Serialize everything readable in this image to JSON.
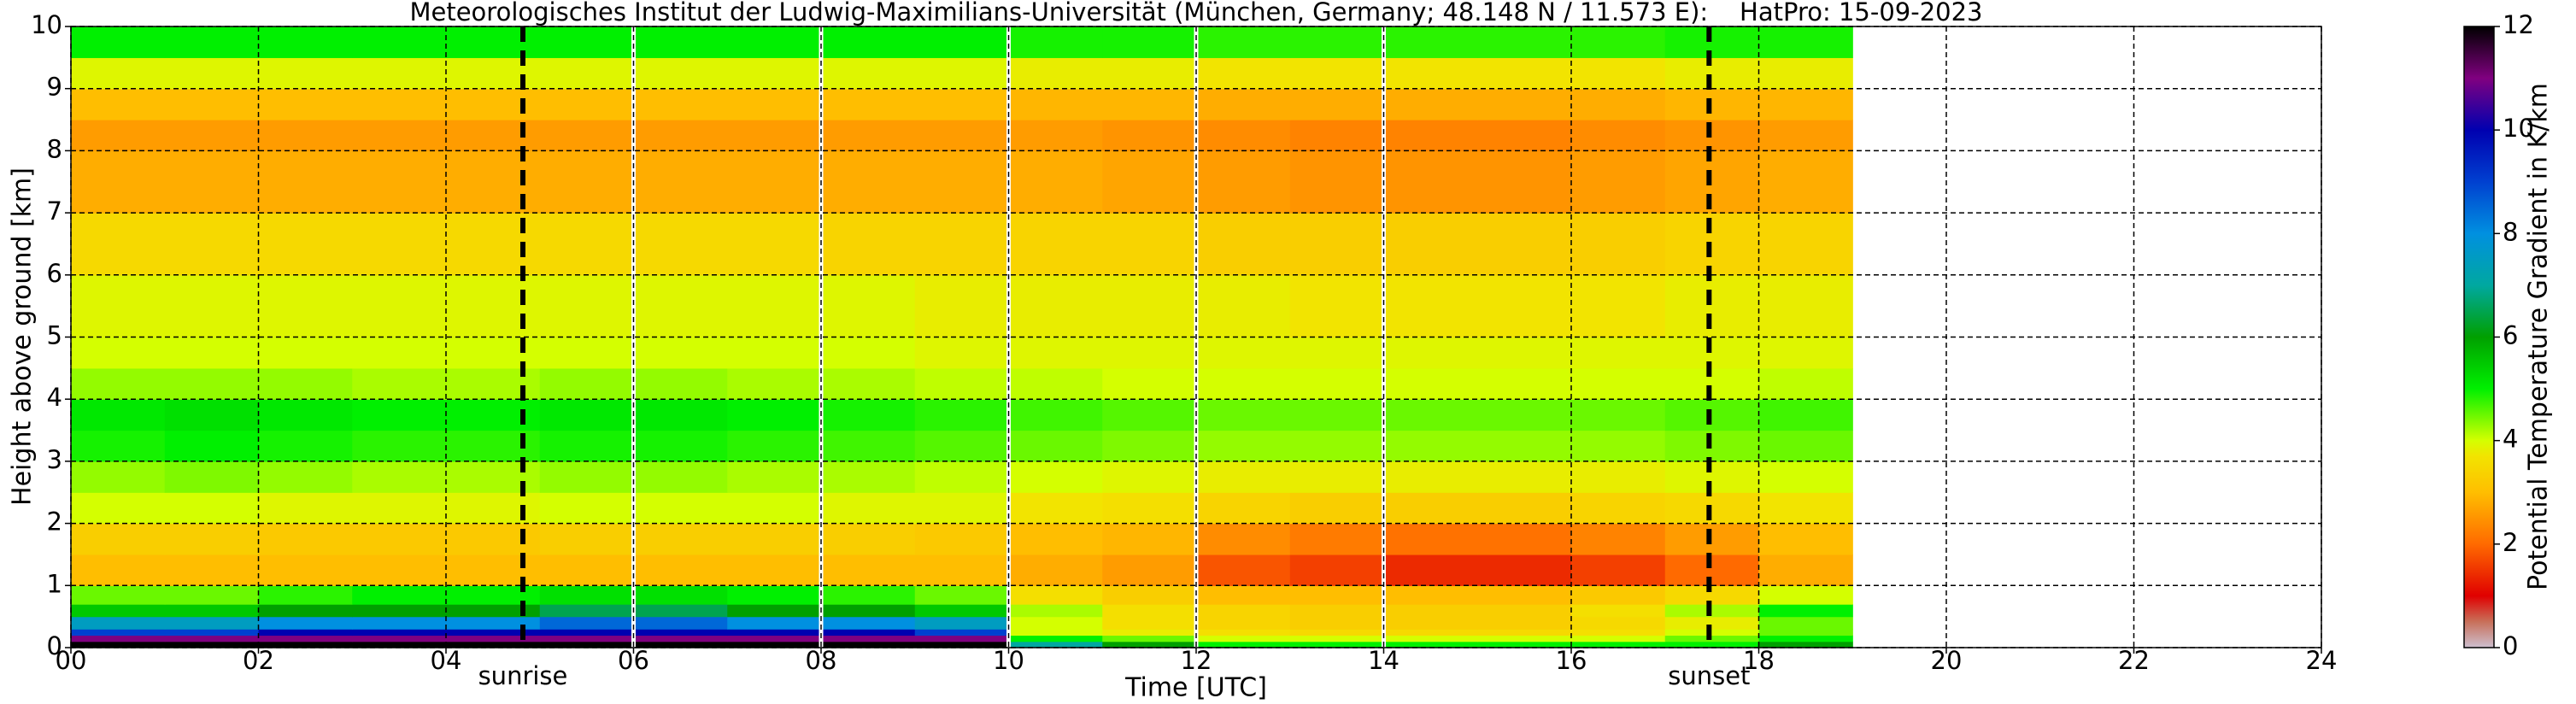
{
  "chart_data": {
    "type": "heatmap",
    "title": "Meteorologisches Institut der Ludwig-Maximilians-Universität (München, Germany; 48.148 N / 11.573 E):    HatPro: 15-09-2023",
    "xlabel": "Time [UTC]",
    "ylabel": "Height above ground [km]",
    "colorbar_label": "Potential Temperature Gradient in K/km",
    "xlim": [
      0,
      24
    ],
    "xticks": [
      {
        "value": 0,
        "label": "00"
      },
      {
        "value": 2,
        "label": "02"
      },
      {
        "value": 4,
        "label": "04"
      },
      {
        "value": 6,
        "label": "06"
      },
      {
        "value": 8,
        "label": "08"
      },
      {
        "value": 10,
        "label": "10"
      },
      {
        "value": 12,
        "label": "12"
      },
      {
        "value": 14,
        "label": "14"
      },
      {
        "value": 16,
        "label": "16"
      },
      {
        "value": 18,
        "label": "18"
      },
      {
        "value": 20,
        "label": "20"
      },
      {
        "value": 22,
        "label": "22"
      },
      {
        "value": 24,
        "label": "24"
      }
    ],
    "ylim": [
      0,
      10
    ],
    "yticks": [
      0,
      1,
      2,
      3,
      4,
      5,
      6,
      7,
      8,
      9,
      10
    ],
    "zlim": [
      0,
      12
    ],
    "zticks": [
      0,
      2,
      4,
      6,
      8,
      10,
      12
    ],
    "grid": true,
    "colormap": [
      [
        0,
        "#cdbfcf"
      ],
      [
        0.5,
        "#c8705a"
      ],
      [
        1,
        "#e00000"
      ],
      [
        2,
        "#ff6a00"
      ],
      [
        3,
        "#ffbe00"
      ],
      [
        3.7,
        "#f2e400"
      ],
      [
        4,
        "#d4ff00"
      ],
      [
        5,
        "#00f000"
      ],
      [
        6,
        "#00a000"
      ],
      [
        7,
        "#00a8a0"
      ],
      [
        8,
        "#0090e0"
      ],
      [
        9,
        "#0040d0"
      ],
      [
        10,
        "#0000b0"
      ],
      [
        11,
        "#800080"
      ],
      [
        12,
        "#000000"
      ]
    ],
    "data_gaps": [
      6,
      8,
      10,
      12,
      14
    ],
    "annotations": [
      {
        "text": "sunrise",
        "x": 4.82
      },
      {
        "text": "sunset",
        "x": 17.47
      }
    ],
    "x_edges": [
      0,
      1,
      2,
      3,
      4,
      5,
      6,
      7,
      8,
      9,
      10,
      11,
      12,
      13,
      14,
      15,
      16,
      17,
      18,
      19
    ],
    "y_edges": [
      0,
      0.1,
      0.2,
      0.3,
      0.5,
      0.7,
      1,
      1.5,
      2,
      2.5,
      3,
      3.5,
      4,
      4.5,
      5,
      6,
      7,
      8,
      8.5,
      9,
      9.5,
      10
    ],
    "z": [
      [
        12,
        12,
        12,
        12,
        12,
        12,
        12,
        12,
        12,
        12,
        7,
        6,
        5,
        5,
        5,
        5,
        5,
        5,
        6
      ],
      [
        11,
        11,
        11,
        11,
        11,
        11,
        11,
        11,
        11,
        11,
        5,
        4.5,
        4,
        4,
        4,
        4,
        4,
        4.5,
        5
      ],
      [
        9,
        9,
        10,
        10,
        10,
        10,
        10,
        10,
        10,
        9,
        4,
        3.8,
        3.6,
        3.5,
        3.5,
        3.5,
        3.6,
        4,
        4.5
      ],
      [
        7.5,
        7.5,
        8,
        8,
        8,
        8.5,
        8.5,
        8,
        8,
        7.5,
        4,
        3.6,
        3.4,
        3.3,
        3.3,
        3.3,
        3.5,
        3.8,
        4.5
      ],
      [
        5.5,
        5.5,
        6,
        6,
        6,
        6.5,
        6.5,
        6,
        6,
        5.5,
        4.2,
        3.6,
        3.4,
        3.3,
        3.3,
        3.3,
        3.6,
        4.2,
        5
      ],
      [
        4.5,
        4.5,
        4.8,
        5,
        5,
        5.2,
        5.2,
        5,
        4.8,
        4.5,
        3.6,
        3.3,
        3,
        3,
        3,
        3,
        3.2,
        3.5,
        4
      ],
      [
        3,
        3,
        3,
        3,
        3,
        3,
        3,
        3,
        3,
        3,
        2.8,
        2.6,
        1.8,
        1.6,
        1.4,
        1.4,
        1.6,
        2,
        2.8
      ],
      [
        3.3,
        3.3,
        3.2,
        3.2,
        3.2,
        3.3,
        3.3,
        3.3,
        3.3,
        3.2,
        3,
        2.9,
        2.4,
        2.2,
        2.1,
        2.1,
        2.3,
        2.6,
        3
      ],
      [
        4,
        4,
        3.9,
        3.9,
        3.9,
        4,
        4,
        4,
        3.9,
        3.9,
        3.7,
        3.6,
        3.4,
        3.3,
        3.3,
        3.3,
        3.4,
        3.5,
        3.7
      ],
      [
        4.3,
        4.4,
        4.3,
        4.2,
        4.2,
        4.3,
        4.3,
        4.2,
        4.2,
        4.1,
        4,
        3.9,
        3.8,
        3.8,
        3.8,
        3.8,
        3.8,
        3.9,
        4
      ],
      [
        4.9,
        5,
        4.9,
        4.8,
        4.8,
        4.9,
        4.9,
        4.8,
        4.7,
        4.6,
        4.5,
        4.4,
        4.3,
        4.3,
        4.3,
        4.3,
        4.3,
        4.4,
        4.5
      ],
      [
        5.1,
        5.2,
        5.1,
        5,
        5,
        5.1,
        5.1,
        5,
        4.9,
        4.8,
        4.7,
        4.6,
        4.5,
        4.5,
        4.5,
        4.5,
        4.5,
        4.6,
        4.7
      ],
      [
        4.3,
        4.3,
        4.3,
        4.2,
        4.2,
        4.3,
        4.3,
        4.2,
        4.2,
        4.1,
        4.1,
        4,
        4,
        4,
        4,
        4,
        4,
        4,
        4.1
      ],
      [
        4,
        4,
        4,
        4,
        4,
        4,
        4,
        4,
        4,
        3.9,
        3.9,
        3.9,
        3.9,
        3.9,
        3.9,
        3.9,
        3.9,
        3.9,
        3.9
      ],
      [
        3.9,
        3.9,
        3.9,
        3.9,
        3.9,
        3.9,
        3.9,
        3.9,
        3.9,
        3.8,
        3.8,
        3.8,
        3.8,
        3.7,
        3.7,
        3.7,
        3.7,
        3.8,
        3.8
      ],
      [
        3.5,
        3.5,
        3.5,
        3.5,
        3.5,
        3.5,
        3.5,
        3.5,
        3.4,
        3.4,
        3.4,
        3.4,
        3.3,
        3.3,
        3.3,
        3.3,
        3.3,
        3.4,
        3.4
      ],
      [
        2.8,
        2.8,
        2.8,
        2.8,
        2.8,
        2.8,
        2.8,
        2.8,
        2.8,
        2.8,
        2.8,
        2.7,
        2.6,
        2.5,
        2.5,
        2.5,
        2.6,
        2.7,
        2.8
      ],
      [
        2.6,
        2.6,
        2.6,
        2.6,
        2.6,
        2.6,
        2.6,
        2.6,
        2.6,
        2.6,
        2.6,
        2.5,
        2.4,
        2.3,
        2.3,
        2.3,
        2.4,
        2.5,
        2.6
      ],
      [
        3,
        3,
        3,
        3,
        3,
        3,
        3,
        3,
        3,
        3,
        2.9,
        2.9,
        2.8,
        2.8,
        2.8,
        2.8,
        2.8,
        2.9,
        2.9
      ],
      [
        3.9,
        3.9,
        3.9,
        3.9,
        3.9,
        3.9,
        3.9,
        3.9,
        3.9,
        3.9,
        3.8,
        3.8,
        3.7,
        3.7,
        3.7,
        3.7,
        3.7,
        3.8,
        3.8
      ],
      [
        5,
        5,
        5,
        5,
        5,
        5,
        5,
        5,
        5,
        5,
        4.9,
        4.9,
        4.8,
        4.8,
        4.8,
        4.8,
        4.8,
        4.9,
        4.9
      ]
    ]
  }
}
